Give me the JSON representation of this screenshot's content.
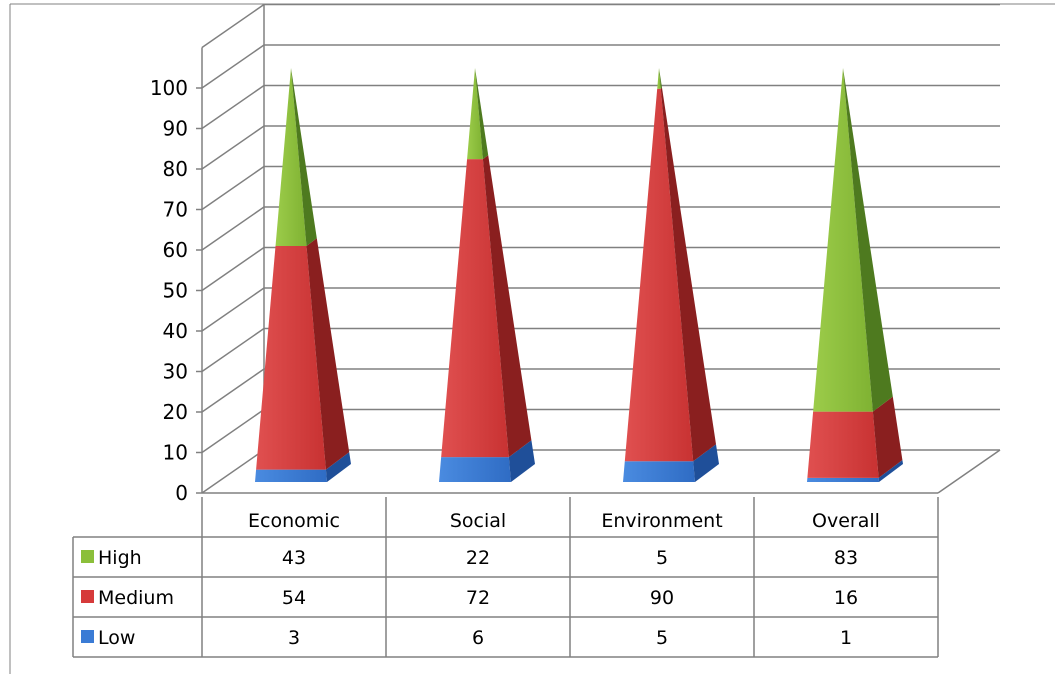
{
  "chart_data": {
    "type": "bar",
    "subtype": "stacked-3d-pyramid",
    "categories": [
      "Economic",
      "Social",
      "Environment",
      "Overall"
    ],
    "series": [
      {
        "name": "High",
        "values": [
          43,
          22,
          5,
          83
        ],
        "color": "#8BBF3A"
      },
      {
        "name": "Medium",
        "values": [
          54,
          72,
          90,
          16
        ],
        "color": "#D63A3A"
      },
      {
        "name": "Low",
        "values": [
          3,
          6,
          5,
          1
        ],
        "color": "#3A7BD5"
      }
    ],
    "ylim": [
      0,
      100
    ],
    "yticks": [
      0,
      10,
      20,
      30,
      40,
      50,
      60,
      70,
      80,
      90,
      100
    ],
    "grid": true,
    "data_table": true,
    "legend": "data-table"
  }
}
